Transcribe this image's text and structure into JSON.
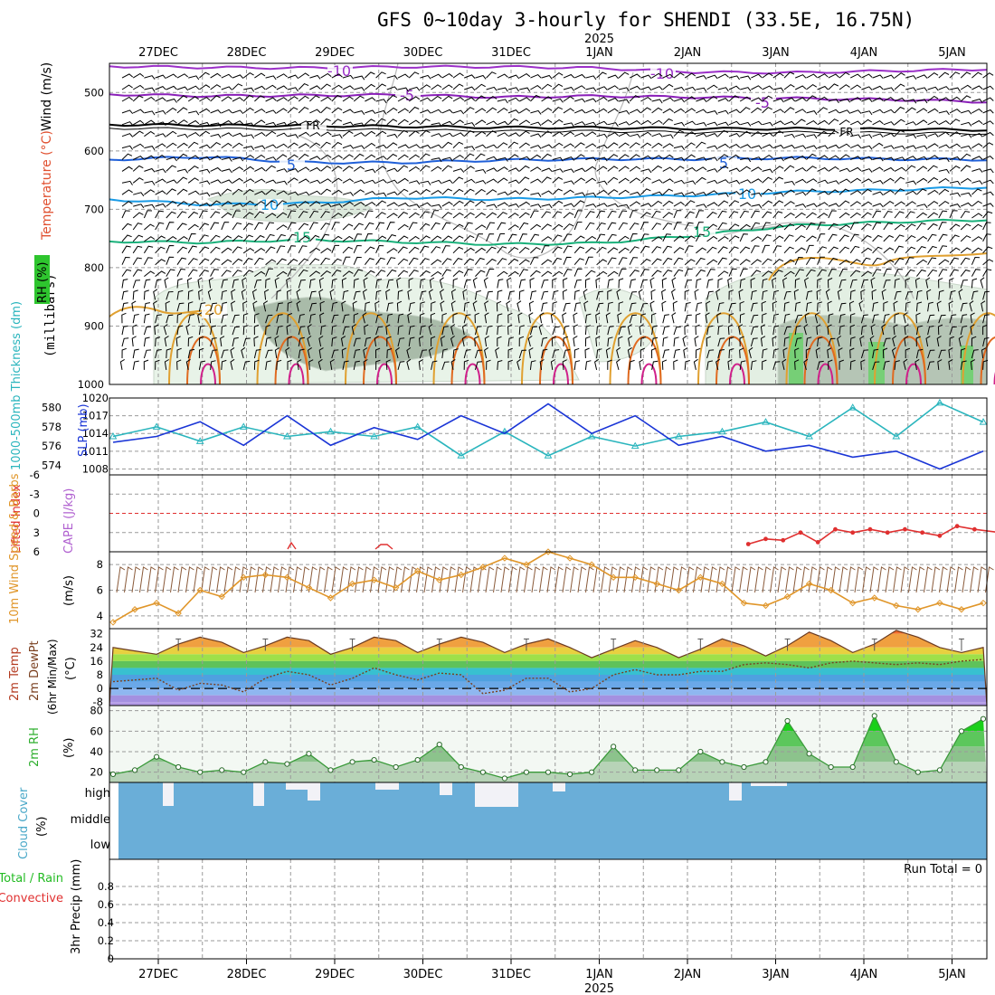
{
  "title": "GFS 0~10day 3-hourly for SHENDI (33.5E, 16.75N)",
  "colors": {
    "rh_green": "#6fcf6f",
    "wind_barbs": "#000000",
    "t_minus10": "#9b30c8",
    "t_minus5": "#8a1fb8",
    "t_freezing": "#000000",
    "t_5": "#1f5fd8",
    "t_10": "#1a9be6",
    "t_15": "#19b07a",
    "t_20": "#e0a030",
    "t_25": "#e06a20",
    "t_30": "#d0208a",
    "slp": "#1a35d6",
    "thickness": "#2ab5bd",
    "lifted_index": "#e03030",
    "wind_speed": "#e0962a",
    "temp_fill_hot": "#e8572a",
    "dewpoint": "#7a4020",
    "rh2m": "#3a9a3a",
    "cloud": "#6aaed8",
    "precip_total": "#22bb22",
    "precip_conv": "#e03030"
  },
  "date_axis": {
    "top_labels": [
      "27DEC",
      "28DEC",
      "29DEC",
      "30DEC",
      "31DEC",
      "1JAN",
      "2JAN",
      "3JAN",
      "4JAN",
      "5JAN"
    ],
    "year_label": "2025"
  },
  "panels": {
    "upper": {
      "axis_label_wind": "Wind (m/s)",
      "axis_label_temp": "Temperature (°C)",
      "axis_label_rh": "RH (%)",
      "axis_label_units": "(millibars)"
    },
    "slp": {
      "ylabel_left": "1000-500mb Thickness (dm)",
      "ylabel_right": "SLP (mb)"
    },
    "li": {
      "ylabel_left": "Lifted Index",
      "ylabel_right": "CAPE (J/kg)"
    },
    "wind10": {
      "ylabel": "10m Wind Speed & Barbs",
      "units": "(m/s)"
    },
    "t2m": {
      "ylabel_1": "2m Temp",
      "ylabel_2": "2m DewPt",
      "ylabel_3": "(6hr Min/Max)",
      "units": "(°C)"
    },
    "rh2m": {
      "ylabel": "2m RH",
      "units": "(%)"
    },
    "cloud": {
      "ylabel": "Cloud Cover",
      "units": "(%)"
    },
    "precip": {
      "ylabel_1": "3hr Precip (mm)",
      "legend_total": "Total / Rain",
      "legend_conv": "Convective",
      "run_total": "Run Total = 0"
    }
  },
  "chart_data": [
    {
      "type": "heatmap",
      "panel": "upper-air cross section",
      "xlabel": "",
      "ylabel": "millibars",
      "y_ticks": [
        500,
        600,
        700,
        800,
        900,
        1000
      ],
      "ylim": [
        450,
        1000
      ],
      "contour_labels": [
        {
          "text": "-10",
          "level": "t"
        },
        {
          "text": "-5",
          "level": "t"
        },
        {
          "text": "FR",
          "level": "t"
        },
        {
          "text": "5",
          "level": "t"
        },
        {
          "text": "10",
          "level": "t"
        },
        {
          "text": "15",
          "level": "t"
        },
        {
          "text": "20",
          "level": "t"
        }
      ],
      "temperature_isotherms": [
        {
          "name": "-10",
          "pressure": [
            455,
            457,
            458,
            456,
            456,
            458,
            465,
            466,
            463,
            460
          ]
        },
        {
          "name": "-5",
          "pressure": [
            503,
            506,
            505,
            504,
            508,
            506,
            508,
            510,
            512,
            516
          ]
        },
        {
          "name": "FR",
          "pressure": [
            555,
            556,
            557,
            558,
            560,
            560,
            562,
            562,
            563,
            564
          ]
        },
        {
          "name": "5",
          "pressure": [
            615,
            610,
            620,
            620,
            616,
            614,
            614,
            612,
            614,
            615
          ]
        },
        {
          "name": "10",
          "pressure": [
            683,
            692,
            690,
            680,
            683,
            680,
            676,
            670,
            667,
            662
          ]
        },
        {
          "name": "15",
          "pressure": [
            755,
            757,
            752,
            756,
            760,
            758,
            745,
            728,
            722,
            718
          ]
        }
      ]
    },
    {
      "type": "line",
      "panel": "SLP and thickness",
      "x": [
        0,
        0.5,
        1,
        1.5,
        2,
        2.5,
        3,
        3.5,
        4,
        4.5,
        5,
        5.5,
        6,
        6.5,
        7,
        7.5,
        8,
        8.5,
        9,
        9.5,
        10
      ],
      "series": [
        {
          "name": "SLP (mb)",
          "values": [
            1012.5,
            1013.5,
            1016,
            1012,
            1017,
            1012,
            1015,
            1013,
            1017,
            1014,
            1019,
            1014,
            1017,
            1012,
            1013.5,
            1011,
            1012,
            1010,
            1011,
            1008,
            1011
          ]
        },
        {
          "name": "1000-500mb Thickness (dm)",
          "values": [
            577,
            578,
            576.5,
            578,
            577,
            577.5,
            577,
            578,
            575,
            577.5,
            575,
            577,
            576,
            577,
            577.5,
            578.5,
            577,
            580,
            577,
            580.5,
            578.5
          ]
        }
      ],
      "ylim_left": [
        573,
        581
      ],
      "ylim_right": [
        1007,
        1020
      ],
      "y_ticks_left": [
        574,
        576,
        578,
        580
      ],
      "y_ticks_right": [
        1008,
        1011,
        1014,
        1017,
        1020
      ]
    },
    {
      "type": "line",
      "panel": "Lifted Index",
      "x": [
        7.3,
        7.5,
        7.7,
        7.9,
        8.1,
        8.3,
        8.5,
        8.7,
        8.9,
        9.1,
        9.3,
        9.5,
        9.7,
        9.9,
        10.2
      ],
      "series": [
        {
          "name": "Lifted Index",
          "values": [
            4.8,
            4,
            4.2,
            3,
            4.5,
            2.5,
            3,
            2.5,
            3,
            2.5,
            3,
            3.5,
            2,
            2.5,
            3
          ]
        }
      ],
      "ylim": [
        6,
        -6
      ],
      "y_ticks": [
        6,
        3,
        0,
        -3,
        -6
      ]
    },
    {
      "type": "line",
      "panel": "10m wind speed",
      "x": [
        0,
        0.25,
        0.5,
        0.75,
        1,
        1.25,
        1.5,
        1.75,
        2,
        2.25,
        2.5,
        2.75,
        3,
        3.25,
        3.5,
        3.75,
        4,
        4.25,
        4.5,
        4.75,
        5,
        5.25,
        5.5,
        5.75,
        6,
        6.25,
        6.5,
        6.75,
        7,
        7.25,
        7.5,
        7.75,
        8,
        8.25,
        8.5,
        8.75,
        9,
        9.25,
        9.5,
        9.75,
        10
      ],
      "series": [
        {
          "name": "10m Wind Speed",
          "values": [
            3.5,
            4.5,
            5,
            4.2,
            6,
            5.5,
            7,
            7.2,
            7,
            6.2,
            5.4,
            6.5,
            6.8,
            6.2,
            7.5,
            6.8,
            7.2,
            7.8,
            8.5,
            8,
            9,
            8.5,
            8,
            7,
            7,
            6.5,
            6,
            7,
            6.5,
            5,
            4.8,
            5.5,
            6.5,
            6,
            5,
            5.4,
            4.8,
            4.5,
            5,
            4.5,
            5
          ]
        }
      ],
      "ylim": [
        3,
        9
      ],
      "y_ticks": [
        4,
        6,
        8
      ]
    },
    {
      "type": "area",
      "panel": "2m temperature and dewpoint",
      "x": [
        0,
        0.25,
        0.5,
        0.75,
        1,
        1.25,
        1.5,
        1.75,
        2,
        2.25,
        2.5,
        2.75,
        3,
        3.25,
        3.5,
        3.75,
        4,
        4.25,
        4.5,
        4.75,
        5,
        5.25,
        5.5,
        5.75,
        6,
        6.25,
        6.5,
        6.75,
        7,
        7.25,
        7.5,
        7.75,
        8,
        8.25,
        8.5,
        8.75,
        9,
        9.25,
        9.5,
        9.75,
        10
      ],
      "series": [
        {
          "name": "2m Temp",
          "values": [
            24,
            22,
            20,
            26,
            30,
            27,
            21,
            25,
            30,
            28,
            20,
            24,
            30,
            28,
            21,
            26,
            30,
            27,
            21,
            26,
            29,
            24,
            18,
            23,
            28,
            24,
            18,
            23,
            29,
            25,
            19,
            25,
            33,
            28,
            21,
            26,
            34,
            30,
            24,
            21,
            24
          ]
        },
        {
          "name": "2m DewPt",
          "values": [
            4,
            5,
            6,
            -1,
            3,
            2,
            -2,
            6,
            10,
            8,
            2,
            6,
            12,
            8,
            5,
            9,
            8,
            -3,
            -1,
            6,
            6,
            -2,
            0,
            8,
            11,
            8,
            8,
            10,
            10,
            14,
            15,
            14,
            12,
            15,
            16,
            15,
            14,
            15,
            14,
            16,
            17
          ]
        }
      ],
      "ylim": [
        -10,
        35
      ],
      "y_ticks": [
        -8,
        0,
        8,
        16,
        24,
        32
      ]
    },
    {
      "type": "area",
      "panel": "2m RH",
      "x": [
        0,
        0.25,
        0.5,
        0.75,
        1,
        1.25,
        1.5,
        1.75,
        2,
        2.25,
        2.5,
        2.75,
        3,
        3.25,
        3.5,
        3.75,
        4,
        4.25,
        4.5,
        4.75,
        5,
        5.25,
        5.5,
        5.75,
        6,
        6.25,
        6.5,
        6.75,
        7,
        7.25,
        7.5,
        7.75,
        8,
        8.25,
        8.5,
        8.75,
        9,
        9.25,
        9.5,
        9.75,
        10
      ],
      "series": [
        {
          "name": "2m RH",
          "values": [
            18,
            22,
            35,
            25,
            20,
            22,
            20,
            30,
            28,
            38,
            22,
            30,
            32,
            25,
            32,
            47,
            25,
            20,
            14,
            20,
            20,
            18,
            20,
            45,
            22,
            22,
            22,
            40,
            30,
            25,
            30,
            70,
            38,
            25,
            25,
            75,
            30,
            20,
            22,
            60,
            72
          ]
        }
      ],
      "ylim": [
        10,
        85
      ],
      "y_ticks": [
        20,
        40,
        60,
        80
      ]
    },
    {
      "type": "bar",
      "panel": "Cloud cover",
      "categories": [
        "high",
        "middle",
        "low"
      ],
      "y_ticks": [
        "high",
        "middle",
        "low"
      ]
    },
    {
      "type": "bar",
      "panel": "3hr precip",
      "values": [],
      "ylim": [
        0,
        1
      ],
      "y_ticks": [
        0,
        0.2,
        0.4,
        0.6,
        0.8
      ]
    }
  ]
}
